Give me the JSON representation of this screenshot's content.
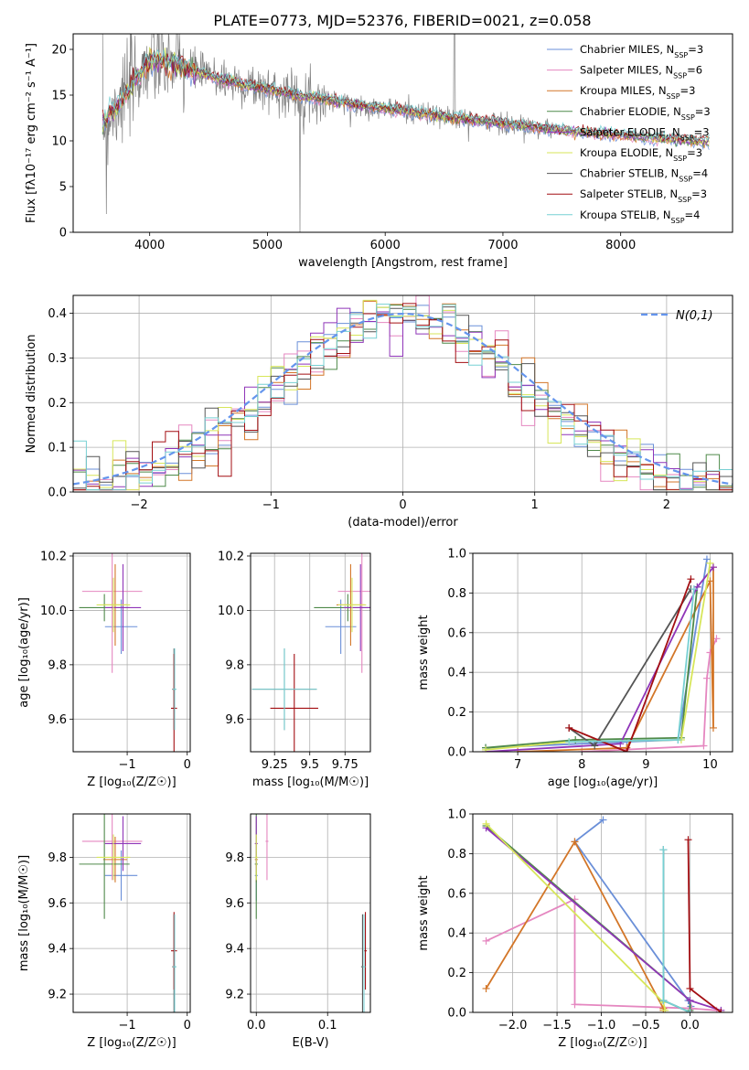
{
  "figure": {
    "title": "PLATE=0773, MJD=52376, FIBERID=0021, z=0.058"
  },
  "colors": {
    "Chabrier MILES": "#6a8fd8",
    "Salpeter MILES": "#e587c0",
    "Kroupa MILES": "#d37628",
    "Chabrier ELODIE": "#4f8a4a",
    "Salpeter ELODIE": "#8f35b8",
    "Kroupa ELODIE": "#d7e65a",
    "Chabrier STELIB": "#555555",
    "Salpeter STELIB": "#a30e12",
    "Kroupa STELIB": "#77d0d3",
    "data": "#808080",
    "normal": "#6495ed"
  },
  "chart_data": [
    {
      "id": "spectrum",
      "type": "line",
      "xlabel": "wavelength [Angstrom, rest frame]",
      "ylabel": "Flux [fλ10⁻¹⁷ erg cm⁻² s⁻¹ A⁻¹]",
      "xlim": [
        3350,
        8950
      ],
      "ylim": [
        0,
        21.7
      ],
      "xticks": [
        4000,
        5000,
        6000,
        7000,
        8000
      ],
      "yticks": [
        0,
        5,
        10,
        15,
        20
      ],
      "grid": false,
      "legend_position": "top-right",
      "series": [
        {
          "name": "Chabrier MILES, N",
          "sub": "SSP",
          "suffix": "=3"
        },
        {
          "name": "Salpeter MILES, N",
          "sub": "SSP",
          "suffix": "=6"
        },
        {
          "name": "Kroupa MILES, N",
          "sub": "SSP",
          "suffix": "=3"
        },
        {
          "name": "Chabrier ELODIE, N",
          "sub": "SSP",
          "suffix": "=3"
        },
        {
          "name": "Salpeter ELODIE, N",
          "sub": "SSP",
          "suffix": "=3"
        },
        {
          "name": "Kroupa ELODIE, N",
          "sub": "SSP",
          "suffix": "=3"
        },
        {
          "name": "Chabrier STELIB, N",
          "sub": "SSP",
          "suffix": "=4"
        },
        {
          "name": "Salpeter STELIB, N",
          "sub": "SSP",
          "suffix": "=3"
        },
        {
          "name": "Kroupa STELIB, N",
          "sub": "SSP",
          "suffix": "=4"
        }
      ],
      "continuum": {
        "x": [
          3600,
          3700,
          3800,
          3900,
          4000,
          4100,
          4200,
          4300,
          4400,
          4600,
          4800,
          5000,
          5200,
          5400,
          5600,
          5800,
          6000,
          6200,
          6400,
          6600,
          6800,
          7000,
          7200,
          7400,
          7600,
          7800,
          8000,
          8200,
          8400,
          8600,
          8780
        ],
        "y": [
          12,
          13.5,
          15.2,
          17.2,
          18.8,
          18.8,
          18.4,
          17.9,
          17.5,
          16.8,
          16.1,
          15.7,
          15.1,
          14.7,
          14.3,
          13.8,
          13.5,
          13.2,
          12.8,
          12.5,
          12.2,
          11.9,
          11.6,
          11.3,
          11.0,
          10.8,
          10.6,
          10.4,
          10.2,
          10.0,
          9.8
        ]
      }
    },
    {
      "id": "residuals",
      "type": "line",
      "xlabel": "(data-model)/error",
      "ylabel": "Normed distribution",
      "xlim": [
        -2.5,
        2.5
      ],
      "ylim": [
        0,
        0.44
      ],
      "xticks": [
        -2,
        -1,
        0,
        1,
        2
      ],
      "yticks": [
        0.0,
        0.1,
        0.2,
        0.3,
        0.4
      ],
      "grid": true,
      "legend_position": "top-right",
      "legend_label": "N(0,1)",
      "bin_width": 0.1
    },
    {
      "id": "age_vs_Z",
      "type": "scatter",
      "xlabel": "Z [log₁₀(Z/Z☉)]",
      "ylabel": "age  [log₁₀(age/yr)]",
      "xlim": [
        -1.9,
        0.05
      ],
      "ylim": [
        9.48,
        10.21
      ],
      "xticks": [
        -1,
        0
      ],
      "yticks": [
        9.6,
        9.8,
        10.0,
        10.2
      ],
      "grid": true
    },
    {
      "id": "age_vs_mass",
      "type": "scatter",
      "xlabel": "mass [log₁₀(M/M☉)]",
      "ylabel": "",
      "xlim": [
        9.08,
        9.93
      ],
      "ylim": [
        9.48,
        10.21
      ],
      "xticks": [
        9.25,
        9.5,
        9.75
      ],
      "yticks": [
        9.6,
        9.8,
        10.0,
        10.2
      ],
      "grid": true
    },
    {
      "id": "weight_vs_age",
      "type": "line",
      "xlabel": "age  [log₁₀(age/yr)]",
      "ylabel": "mass weight",
      "xlim": [
        6.3,
        10.35
      ],
      "ylim": [
        0,
        1
      ],
      "xticks": [
        7,
        8,
        9,
        10
      ],
      "yticks": [
        0.0,
        0.2,
        0.4,
        0.6,
        0.8,
        1.0
      ],
      "grid": true
    },
    {
      "id": "mass_vs_Z",
      "type": "scatter",
      "xlabel": "Z [log₁₀(Z/Z☉)]",
      "ylabel": "mass [log₁₀(M/M☉)]",
      "xlim": [
        -1.9,
        0.05
      ],
      "ylim": [
        9.12,
        9.99
      ],
      "xticks": [
        -1,
        0
      ],
      "yticks": [
        9.2,
        9.4,
        9.6,
        9.8
      ],
      "grid": true
    },
    {
      "id": "mass_vs_ebv",
      "type": "scatter",
      "xlabel": "E(B-V)",
      "ylabel": "",
      "xlim": [
        -0.008,
        0.16
      ],
      "ylim": [
        9.12,
        9.99
      ],
      "xticks": [
        0.0,
        0.1
      ],
      "yticks": [
        9.2,
        9.4,
        9.6,
        9.8
      ],
      "grid": true
    },
    {
      "id": "weight_vs_Z",
      "type": "line",
      "xlabel": "Z [log₁₀(Z/Z☉)]",
      "ylabel": "mass weight",
      "xlim": [
        -2.45,
        0.48
      ],
      "ylim": [
        0,
        1
      ],
      "xticks": [
        -2.0,
        -1.5,
        -1.0,
        -0.5,
        0.0
      ],
      "yticks": [
        0.0,
        0.2,
        0.4,
        0.6,
        0.8,
        1.0
      ],
      "grid": true
    }
  ],
  "fits": [
    {
      "name": "Chabrier MILES",
      "Z": -1.1,
      "Zerr": 0.27,
      "age": 9.94,
      "ageErr": 0.1,
      "mass": 9.72,
      "massErr": 0.11,
      "ebv": 0.0,
      "ages": [
        6.5,
        8.7,
        9.5,
        9.95
      ],
      "weights": [
        0.02,
        0.05,
        0.06,
        0.97
      ],
      "Zs": [
        -0.98,
        -1.3,
        -0.02,
        0.01
      ],
      "Zw": [
        0.97,
        0.86,
        0.06,
        0.03
      ]
    },
    {
      "name": "Salpeter MILES",
      "Z": -1.25,
      "Zerr": 0.5,
      "age": 10.07,
      "ageErr": 0.3,
      "mass": 9.87,
      "massErr": 0.17,
      "ebv": 0.015,
      "ages": [
        8.0,
        9.9,
        9.95,
        10.0,
        10.1
      ],
      "weights": [
        0.0,
        0.03,
        0.37,
        0.5,
        0.57
      ],
      "Zs": [
        -2.3,
        -1.3,
        -1.3,
        0.02,
        0.3
      ],
      "Zw": [
        0.36,
        0.57,
        0.04,
        0.02,
        0.01
      ]
    },
    {
      "name": "Kroupa MILES",
      "Z": -1.2,
      "Zerr": 0.2,
      "age": 10.02,
      "ageErr": 0.15,
      "mass": 9.79,
      "massErr": 0.1,
      "ebv": 0.0,
      "ages": [
        7.0,
        8.7,
        10.0,
        10.05,
        10.05
      ],
      "weights": [
        0.0,
        0.02,
        0.86,
        0.12,
        0.93
      ],
      "Zs": [
        -2.3,
        -1.3,
        -0.3,
        -0.3
      ],
      "Zw": [
        0.12,
        0.86,
        0.02,
        0.01
      ]
    },
    {
      "name": "Chabrier ELODIE",
      "Z": -1.38,
      "Zerr": 0.42,
      "age": 10.01,
      "ageErr": 0.05,
      "mass": 9.77,
      "massErr": 0.24,
      "ebv": 0.0,
      "ages": [
        6.5,
        7.9,
        9.55,
        9.8
      ],
      "weights": [
        0.02,
        0.06,
        0.07,
        0.83
      ],
      "Zs": [
        -2.3,
        0.0,
        0.0
      ],
      "Zw": [
        0.94,
        0.06,
        0.01
      ]
    },
    {
      "name": "Salpeter ELODIE",
      "Z": -1.07,
      "Zerr": 0.3,
      "age": 10.01,
      "ageErr": 0.16,
      "mass": 9.86,
      "massErr": 0.12,
      "ebv": 0.0,
      "ages": [
        6.5,
        8.6,
        9.8,
        10.05
      ],
      "weights": [
        0.0,
        0.04,
        0.83,
        0.93
      ],
      "Zs": [
        -2.3,
        0.0,
        0.35
      ],
      "Zw": [
        0.93,
        0.06,
        0.01
      ]
    },
    {
      "name": "Kroupa ELODIE",
      "Z": -1.23,
      "Zerr": 0.28,
      "age": 10.02,
      "ageErr": 0.1,
      "mass": 9.8,
      "massErr": 0.1,
      "ebv": 0.0,
      "ages": [
        6.5,
        7.8,
        9.55,
        10.0
      ],
      "weights": [
        0.01,
        0.05,
        0.06,
        0.95
      ],
      "Zs": [
        -2.3,
        -0.3,
        -0.28
      ],
      "Zw": [
        0.95,
        0.05,
        0.01
      ]
    },
    {
      "name": "Chabrier STELIB",
      "Z": -0.22,
      "Zerr": 0.03,
      "age": 9.71,
      "ageErr": 0.15,
      "mass": 9.32,
      "massErr": 0.23,
      "ebv": 0.149,
      "ages": [
        7.8,
        8.2,
        9.7
      ],
      "weights": [
        0.12,
        0.03,
        0.82
      ],
      "Zs": [
        -0.3,
        -0.3,
        0.0
      ],
      "Zw": [
        0.82,
        0.06,
        0.0
      ]
    },
    {
      "name": "Salpeter STELIB",
      "Z": -0.22,
      "Zerr": 0.05,
      "age": 9.64,
      "ageErr": 0.2,
      "mass": 9.39,
      "massErr": 0.17,
      "ebv": 0.153,
      "ages": [
        7.8,
        8.7,
        9.7
      ],
      "weights": [
        0.12,
        0.0,
        0.87
      ],
      "Zs": [
        -0.02,
        0.0,
        0.35
      ],
      "Zw": [
        0.87,
        0.12,
        0.0
      ]
    },
    {
      "name": "Kroupa STELIB",
      "Z": -0.21,
      "Zerr": 0.03,
      "age": 9.71,
      "ageErr": 0.15,
      "mass": 9.32,
      "massErr": 0.23,
      "ebv": 0.151,
      "ages": [
        7.8,
        9.5,
        9.75
      ],
      "weights": [
        0.05,
        0.06,
        0.82
      ],
      "Zs": [
        -0.3,
        -0.3,
        0.0
      ],
      "Zw": [
        0.82,
        0.06,
        0.0
      ]
    }
  ]
}
